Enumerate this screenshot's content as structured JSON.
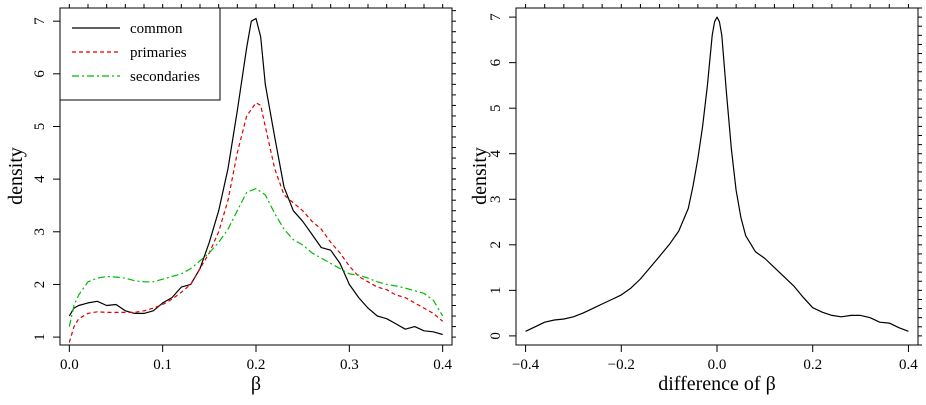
{
  "chart_data": [
    {
      "type": "line",
      "title": "",
      "xlabel": "β",
      "ylabel": "density",
      "xlim": [
        -0.01,
        0.41
      ],
      "ylim": [
        0.85,
        7.25
      ],
      "xticks": [
        0.0,
        0.1,
        0.2,
        0.3,
        0.4
      ],
      "xtick_labels": [
        "0.0",
        "0.1",
        "0.2",
        "0.3",
        "0.4"
      ],
      "yticks": [
        1,
        2,
        3,
        4,
        5,
        6,
        7
      ],
      "ytick_labels": [
        "1",
        "2",
        "3",
        "4",
        "5",
        "6",
        "7"
      ],
      "grid": false,
      "legend_position": "top-left",
      "series": [
        {
          "name": "common",
          "color": "#000000",
          "dash": "solid",
          "x": [
            0.0,
            0.005,
            0.01,
            0.02,
            0.03,
            0.04,
            0.05,
            0.06,
            0.07,
            0.08,
            0.09,
            0.1,
            0.11,
            0.12,
            0.13,
            0.14,
            0.15,
            0.16,
            0.17,
            0.18,
            0.19,
            0.195,
            0.2,
            0.205,
            0.21,
            0.22,
            0.23,
            0.24,
            0.25,
            0.26,
            0.27,
            0.28,
            0.29,
            0.3,
            0.31,
            0.32,
            0.33,
            0.34,
            0.35,
            0.36,
            0.37,
            0.38,
            0.39,
            0.4
          ],
          "y": [
            1.4,
            1.55,
            1.6,
            1.65,
            1.68,
            1.6,
            1.62,
            1.5,
            1.45,
            1.45,
            1.5,
            1.65,
            1.75,
            1.95,
            2.0,
            2.3,
            2.8,
            3.4,
            4.2,
            5.3,
            6.5,
            7.0,
            7.05,
            6.7,
            5.8,
            4.8,
            3.85,
            3.4,
            3.2,
            2.95,
            2.7,
            2.65,
            2.4,
            2.0,
            1.75,
            1.55,
            1.4,
            1.35,
            1.25,
            1.15,
            1.2,
            1.12,
            1.1,
            1.05
          ]
        },
        {
          "name": "primaries",
          "color": "#dd0000",
          "dash": "dashed",
          "x": [
            0.0,
            0.005,
            0.01,
            0.02,
            0.03,
            0.04,
            0.05,
            0.06,
            0.07,
            0.08,
            0.09,
            0.1,
            0.11,
            0.12,
            0.13,
            0.14,
            0.15,
            0.16,
            0.17,
            0.18,
            0.19,
            0.2,
            0.205,
            0.21,
            0.22,
            0.23,
            0.24,
            0.25,
            0.26,
            0.27,
            0.28,
            0.29,
            0.3,
            0.31,
            0.32,
            0.33,
            0.34,
            0.35,
            0.36,
            0.37,
            0.38,
            0.39,
            0.4
          ],
          "y": [
            0.9,
            1.2,
            1.35,
            1.45,
            1.48,
            1.47,
            1.47,
            1.47,
            1.47,
            1.5,
            1.55,
            1.62,
            1.72,
            1.85,
            2.0,
            2.3,
            2.6,
            3.0,
            3.6,
            4.5,
            5.2,
            5.45,
            5.4,
            5.0,
            4.2,
            3.7,
            3.55,
            3.4,
            3.2,
            3.05,
            2.8,
            2.6,
            2.35,
            2.15,
            2.05,
            1.95,
            1.9,
            1.8,
            1.75,
            1.65,
            1.55,
            1.45,
            1.3
          ]
        },
        {
          "name": "secondaries",
          "color": "#00bb00",
          "dash": "dashdot",
          "x": [
            0.0,
            0.005,
            0.01,
            0.02,
            0.03,
            0.04,
            0.05,
            0.06,
            0.07,
            0.08,
            0.09,
            0.1,
            0.11,
            0.12,
            0.13,
            0.14,
            0.15,
            0.16,
            0.17,
            0.18,
            0.19,
            0.2,
            0.21,
            0.22,
            0.23,
            0.24,
            0.25,
            0.26,
            0.27,
            0.28,
            0.29,
            0.3,
            0.31,
            0.32,
            0.33,
            0.34,
            0.35,
            0.36,
            0.37,
            0.38,
            0.39,
            0.4
          ],
          "y": [
            1.2,
            1.6,
            1.8,
            2.05,
            2.12,
            2.15,
            2.14,
            2.12,
            2.07,
            2.05,
            2.05,
            2.1,
            2.15,
            2.2,
            2.3,
            2.45,
            2.6,
            2.8,
            3.05,
            3.4,
            3.75,
            3.82,
            3.7,
            3.35,
            3.05,
            2.85,
            2.75,
            2.6,
            2.5,
            2.4,
            2.3,
            2.2,
            2.18,
            2.12,
            2.05,
            2.0,
            1.97,
            1.93,
            1.88,
            1.83,
            1.7,
            1.4
          ]
        }
      ]
    },
    {
      "type": "line",
      "title": "",
      "xlabel": "difference of  β",
      "ylabel": "density",
      "xlim": [
        -0.42,
        0.42
      ],
      "ylim": [
        -0.2,
        7.2
      ],
      "xticks": [
        -0.4,
        -0.2,
        0.0,
        0.2,
        0.4
      ],
      "xtick_labels": [
        "−0.4",
        "−0.2",
        "0.0",
        "0.2",
        "0.4"
      ],
      "yticks": [
        0,
        1,
        2,
        3,
        4,
        5,
        6,
        7
      ],
      "ytick_labels": [
        "0",
        "1",
        "2",
        "3",
        "4",
        "5",
        "6",
        "7"
      ],
      "grid": false,
      "series": [
        {
          "color": "#000000",
          "dash": "solid",
          "x": [
            -0.4,
            -0.38,
            -0.36,
            -0.34,
            -0.32,
            -0.3,
            -0.28,
            -0.26,
            -0.24,
            -0.22,
            -0.2,
            -0.18,
            -0.16,
            -0.14,
            -0.12,
            -0.1,
            -0.08,
            -0.06,
            -0.05,
            -0.04,
            -0.03,
            -0.02,
            -0.01,
            -0.005,
            0.0,
            0.005,
            0.01,
            0.02,
            0.03,
            0.04,
            0.05,
            0.06,
            0.08,
            0.1,
            0.12,
            0.14,
            0.16,
            0.18,
            0.2,
            0.22,
            0.24,
            0.26,
            0.28,
            0.3,
            0.32,
            0.34,
            0.36,
            0.38,
            0.4
          ],
          "y": [
            0.1,
            0.2,
            0.3,
            0.35,
            0.37,
            0.42,
            0.5,
            0.6,
            0.7,
            0.8,
            0.9,
            1.05,
            1.25,
            1.5,
            1.75,
            2.0,
            2.3,
            2.8,
            3.3,
            3.9,
            4.6,
            5.5,
            6.6,
            6.9,
            7.0,
            6.9,
            6.6,
            5.3,
            4.1,
            3.2,
            2.6,
            2.2,
            1.85,
            1.7,
            1.5,
            1.3,
            1.1,
            0.85,
            0.62,
            0.52,
            0.45,
            0.42,
            0.45,
            0.45,
            0.4,
            0.3,
            0.28,
            0.18,
            0.1
          ]
        }
      ]
    }
  ]
}
